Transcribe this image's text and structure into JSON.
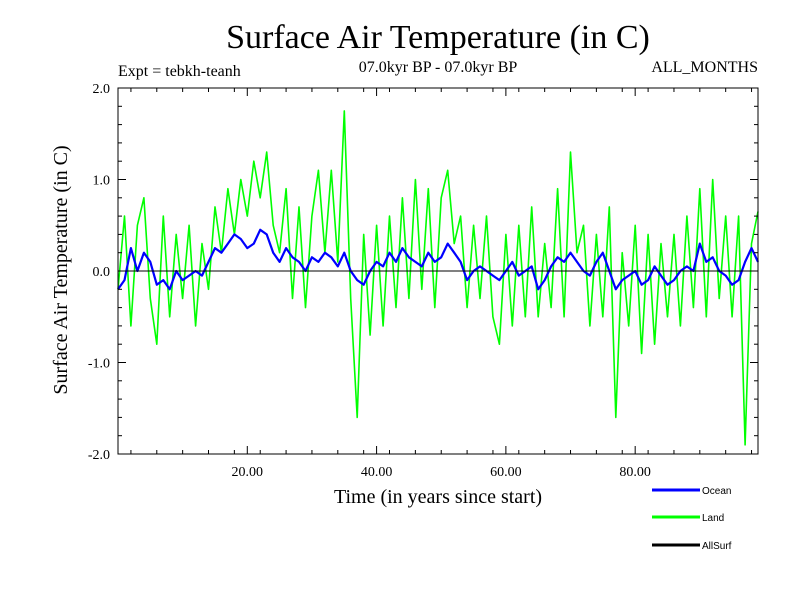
{
  "colors": {
    "ocean": "#0000ff",
    "land": "#00ff00",
    "allsurf": "#000000",
    "axis": "#000000"
  },
  "chart_data": {
    "type": "line",
    "title": "Surface Air Temperature (in C)",
    "subtitle_left": "Expt = tebkh-teanh",
    "subtitle_center": "07.0kyr BP - 07.0kyr BP",
    "subtitle_right": "ALL_MONTHS",
    "xlabel": "Time (in years since start)",
    "ylabel": "Surface Air Temperature (in C)",
    "xlim": [
      0,
      99
    ],
    "ylim": [
      -2.0,
      2.0
    ],
    "x_ticks": [
      20,
      40,
      60,
      80
    ],
    "x_tick_labels": [
      "20.00",
      "40.00",
      "60.00",
      "80.00"
    ],
    "y_ticks": [
      -2.0,
      -1.0,
      0.0,
      1.0,
      2.0
    ],
    "y_tick_labels": [
      "-2.0",
      "-1.0",
      "0.0",
      "1.0",
      "2.0"
    ],
    "zero_line": 0.0,
    "series": [
      {
        "name": "Land",
        "x": [
          0,
          1,
          2,
          3,
          4,
          5,
          6,
          7,
          8,
          9,
          10,
          11,
          12,
          13,
          14,
          15,
          16,
          17,
          18,
          19,
          20,
          21,
          22,
          23,
          24,
          25,
          26,
          27,
          28,
          29,
          30,
          31,
          32,
          33,
          34,
          35,
          36,
          37,
          38,
          39,
          40,
          41,
          42,
          43,
          44,
          45,
          46,
          47,
          48,
          49,
          50,
          51,
          52,
          53,
          54,
          55,
          56,
          57,
          58,
          59,
          60,
          61,
          62,
          63,
          64,
          65,
          66,
          67,
          68,
          69,
          70,
          71,
          72,
          73,
          74,
          75,
          76,
          77,
          78,
          79,
          80,
          81,
          82,
          83,
          84,
          85,
          86,
          87,
          88,
          89,
          90,
          91,
          92,
          93,
          94,
          95,
          96,
          97,
          98,
          99
        ],
        "values": [
          -0.2,
          0.6,
          -0.6,
          0.5,
          0.8,
          -0.3,
          -0.8,
          0.6,
          -0.5,
          0.4,
          -0.3,
          0.5,
          -0.6,
          0.3,
          -0.2,
          0.7,
          0.2,
          0.9,
          0.4,
          1.0,
          0.6,
          1.2,
          0.8,
          1.3,
          0.5,
          0.2,
          0.9,
          -0.3,
          0.7,
          -0.4,
          0.6,
          1.1,
          0.2,
          1.1,
          0.1,
          1.75,
          -0.3,
          -1.6,
          0.4,
          -0.7,
          0.5,
          -0.6,
          0.6,
          -0.4,
          0.8,
          -0.3,
          1.0,
          -0.2,
          0.9,
          -0.4,
          0.8,
          1.1,
          0.3,
          0.6,
          -0.4,
          0.5,
          -0.3,
          0.6,
          -0.5,
          -0.8,
          0.4,
          -0.6,
          0.5,
          -0.5,
          0.7,
          -0.5,
          0.3,
          -0.4,
          0.9,
          -0.5,
          1.3,
          0.2,
          0.5,
          -0.6,
          0.4,
          -0.5,
          0.7,
          -1.6,
          0.2,
          -0.6,
          0.5,
          -0.9,
          0.4,
          -0.8,
          0.3,
          -0.5,
          0.4,
          -0.6,
          0.6,
          -0.4,
          0.9,
          -0.5,
          1.0,
          -0.3,
          0.6,
          -0.5,
          0.6,
          -1.9,
          0.3,
          0.65
        ]
      },
      {
        "name": "Ocean",
        "x": [
          0,
          1,
          2,
          3,
          4,
          5,
          6,
          7,
          8,
          9,
          10,
          11,
          12,
          13,
          14,
          15,
          16,
          17,
          18,
          19,
          20,
          21,
          22,
          23,
          24,
          25,
          26,
          27,
          28,
          29,
          30,
          31,
          32,
          33,
          34,
          35,
          36,
          37,
          38,
          39,
          40,
          41,
          42,
          43,
          44,
          45,
          46,
          47,
          48,
          49,
          50,
          51,
          52,
          53,
          54,
          55,
          56,
          57,
          58,
          59,
          60,
          61,
          62,
          63,
          64,
          65,
          66,
          67,
          68,
          69,
          70,
          71,
          72,
          73,
          74,
          75,
          76,
          77,
          78,
          79,
          80,
          81,
          82,
          83,
          84,
          85,
          86,
          87,
          88,
          89,
          90,
          91,
          92,
          93,
          94,
          95,
          96,
          97,
          98,
          99
        ],
        "values": [
          -0.2,
          -0.1,
          0.25,
          0.0,
          0.2,
          0.1,
          -0.15,
          -0.1,
          -0.2,
          0.0,
          -0.1,
          -0.05,
          0.0,
          -0.05,
          0.1,
          0.25,
          0.2,
          0.3,
          0.4,
          0.35,
          0.25,
          0.3,
          0.45,
          0.4,
          0.2,
          0.1,
          0.25,
          0.15,
          0.1,
          0.0,
          0.15,
          0.1,
          0.2,
          0.15,
          0.05,
          0.2,
          0.0,
          -0.1,
          -0.15,
          0.0,
          0.1,
          0.05,
          0.2,
          0.1,
          0.25,
          0.15,
          0.1,
          0.05,
          0.2,
          0.1,
          0.15,
          0.3,
          0.2,
          0.1,
          -0.1,
          0.0,
          0.05,
          0.0,
          -0.05,
          -0.1,
          0.0,
          0.1,
          -0.05,
          0.0,
          0.05,
          -0.2,
          -0.1,
          0.05,
          0.15,
          0.1,
          0.2,
          0.1,
          0.0,
          -0.05,
          0.1,
          0.2,
          0.0,
          -0.2,
          -0.1,
          -0.05,
          0.0,
          -0.15,
          -0.1,
          0.05,
          -0.05,
          -0.15,
          -0.1,
          0.0,
          0.05,
          0.0,
          0.3,
          0.1,
          0.15,
          0.0,
          -0.05,
          -0.15,
          -0.1,
          0.1,
          0.25,
          0.1
        ]
      },
      {
        "name": "AllSurf",
        "x": [],
        "values": []
      }
    ],
    "legend": [
      {
        "name": "Ocean",
        "color": "#0000ff"
      },
      {
        "name": "Land",
        "color": "#00ff00"
      },
      {
        "name": "AllSurf",
        "color": "#000000"
      }
    ]
  }
}
